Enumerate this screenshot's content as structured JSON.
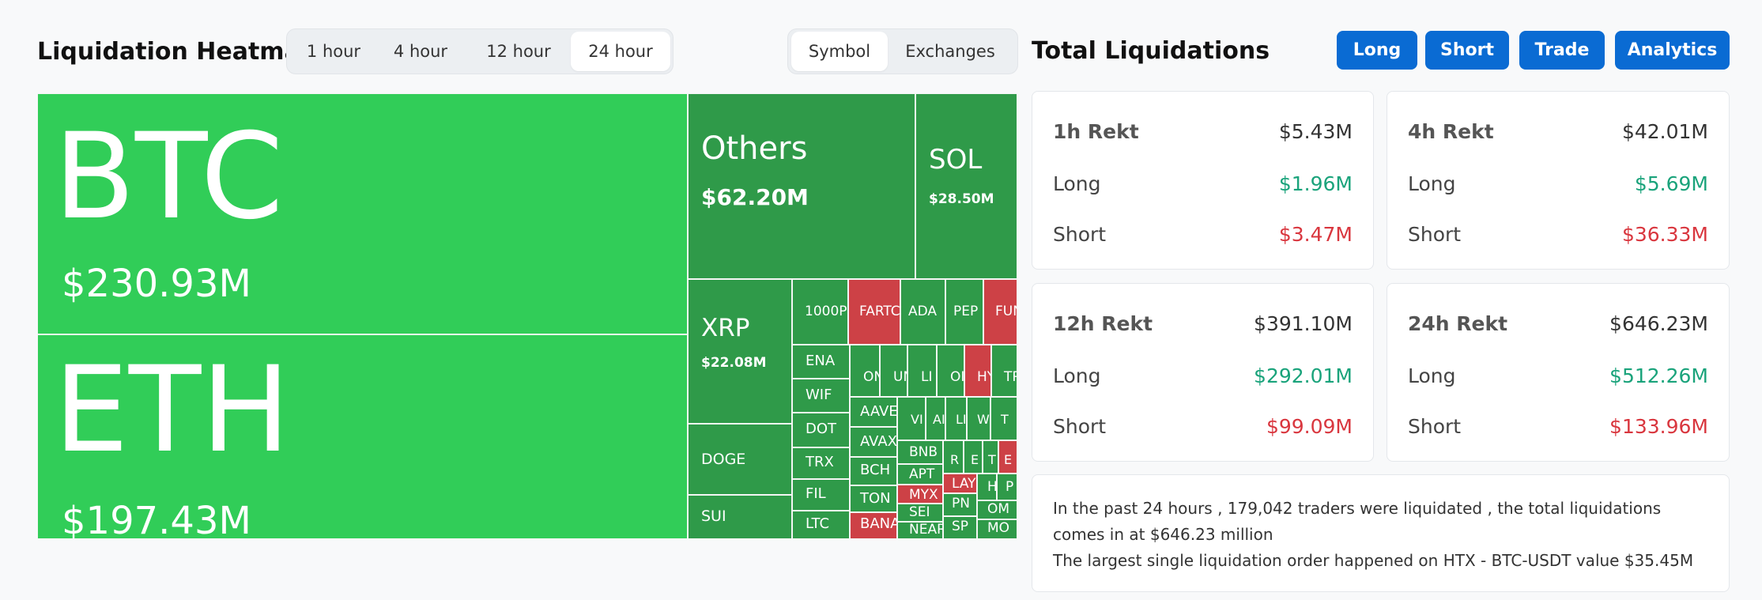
{
  "heatmap": {
    "title": "Liquidation Heatmap",
    "time_tabs": [
      "1 hour",
      "4 hour",
      "12 hour",
      "24 hour"
    ],
    "active_time_tab": "24 hour",
    "view_tabs": [
      "Symbol",
      "Exchanges"
    ],
    "active_view_tab": "Symbol",
    "colors": {
      "bright_green": "#31cd58",
      "green": "#2f9a49",
      "red": "#cd4146"
    },
    "tiles": [
      {
        "symbol": "BTC",
        "value": "$230.93M",
        "color": "bright"
      },
      {
        "symbol": "ETH",
        "value": "$197.43M",
        "color": "bright"
      },
      {
        "symbol": "Others",
        "value": "$62.20M",
        "color": "green"
      },
      {
        "symbol": "SOL",
        "value": "$28.50M",
        "color": "green"
      },
      {
        "symbol": "XRP",
        "value": "$22.08M",
        "color": "green"
      },
      {
        "symbol": "DOGE",
        "color": "green"
      },
      {
        "symbol": "SUI",
        "color": "green"
      },
      {
        "symbol": "1000P",
        "color": "green"
      },
      {
        "symbol": "FARTC",
        "color": "red"
      },
      {
        "symbol": "ADA",
        "color": "green"
      },
      {
        "symbol": "PEP",
        "color": "green"
      },
      {
        "symbol": "FUN",
        "color": "red"
      },
      {
        "symbol": "ENA",
        "color": "green"
      },
      {
        "symbol": "WIF",
        "color": "green"
      },
      {
        "symbol": "DOT",
        "color": "green"
      },
      {
        "symbol": "TRX",
        "color": "green"
      },
      {
        "symbol": "FIL",
        "color": "green"
      },
      {
        "symbol": "LTC",
        "color": "green"
      },
      {
        "symbol": "ON",
        "color": "green"
      },
      {
        "symbol": "UN",
        "color": "green"
      },
      {
        "symbol": "LI",
        "color": "green"
      },
      {
        "symbol": "OI",
        "color": "green"
      },
      {
        "symbol": "HY",
        "color": "red"
      },
      {
        "symbol": "TR",
        "color": "green"
      },
      {
        "symbol": "AAVE",
        "color": "green"
      },
      {
        "symbol": "AVAX",
        "color": "green"
      },
      {
        "symbol": "BCH",
        "color": "green"
      },
      {
        "symbol": "TON",
        "color": "green"
      },
      {
        "symbol": "BANA",
        "color": "red"
      },
      {
        "symbol": "VI",
        "color": "green"
      },
      {
        "symbol": "AI",
        "color": "green"
      },
      {
        "symbol": "LI",
        "color": "green"
      },
      {
        "symbol": "W",
        "color": "green"
      },
      {
        "symbol": "T",
        "color": "green"
      },
      {
        "symbol": "BNB",
        "color": "green"
      },
      {
        "symbol": "R",
        "color": "green"
      },
      {
        "symbol": "E",
        "color": "green"
      },
      {
        "symbol": "T",
        "color": "green"
      },
      {
        "symbol": "E",
        "color": "red"
      },
      {
        "symbol": "APT",
        "color": "green"
      },
      {
        "symbol": "MYX",
        "color": "red"
      },
      {
        "symbol": "LAY",
        "color": "red"
      },
      {
        "symbol": "H",
        "color": "green"
      },
      {
        "symbol": "P",
        "color": "green"
      },
      {
        "symbol": "SEI",
        "color": "green"
      },
      {
        "symbol": "PN",
        "color": "green"
      },
      {
        "symbol": "OM",
        "color": "green"
      },
      {
        "symbol": "NEAR",
        "color": "green"
      },
      {
        "symbol": "SP",
        "color": "green"
      },
      {
        "symbol": "MO",
        "color": "green"
      }
    ]
  },
  "totals": {
    "title": "Total Liquidations",
    "buttons": [
      "Long",
      "Short",
      "Trade",
      "Analytics"
    ],
    "cards": [
      {
        "title": "1h Rekt",
        "total": "$5.43M",
        "long_label": "Long",
        "long": "$1.96M",
        "short_label": "Short",
        "short": "$3.47M"
      },
      {
        "title": "4h Rekt",
        "total": "$42.01M",
        "long_label": "Long",
        "long": "$5.69M",
        "short_label": "Short",
        "short": "$36.33M"
      },
      {
        "title": "12h Rekt",
        "total": "$391.10M",
        "long_label": "Long",
        "long": "$292.01M",
        "short_label": "Short",
        "short": "$99.09M"
      },
      {
        "title": "24h Rekt",
        "total": "$646.23M",
        "long_label": "Long",
        "long": "$512.26M",
        "short_label": "Short",
        "short": "$133.96M"
      }
    ],
    "summary_line1": "In the past 24 hours , 179,042 traders were liquidated , the total liquidations comes in at $646.23 million",
    "summary_line2": "The largest single liquidation order happened on HTX - BTC-USDT value $35.45M"
  }
}
